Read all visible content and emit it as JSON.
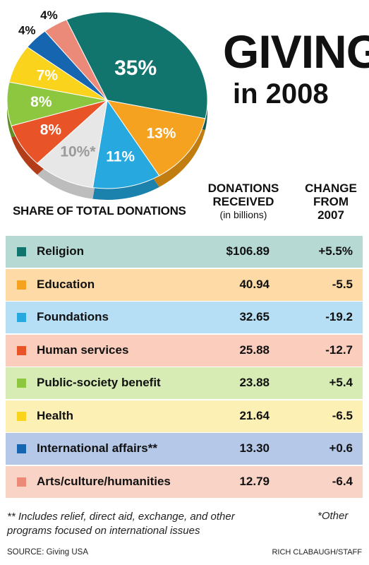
{
  "title_line1": "GIVING",
  "title_line2": "in 2008",
  "chart_data": {
    "type": "pie",
    "label": "SHARE OF TOTAL DONATIONS",
    "slices": [
      {
        "category": "Religion",
        "percent": 35,
        "label": "35%",
        "color": "#12756d",
        "shade": "#0c5952"
      },
      {
        "category": "Education",
        "percent": 13,
        "label": "13%",
        "color": "#f4a21f",
        "shade": "#c27d10"
      },
      {
        "category": "Foundations",
        "percent": 11,
        "label": "11%",
        "color": "#27a8df",
        "shade": "#1b82ad"
      },
      {
        "category": "Other",
        "percent": 10,
        "label": "10%*",
        "color": "#e7e7e7",
        "shade": "#bdbdbd"
      },
      {
        "category": "Human services",
        "percent": 8,
        "label": "8%",
        "color": "#e85427",
        "shade": "#b33d18"
      },
      {
        "category": "Public-society benefit",
        "percent": 8,
        "label": "8%",
        "color": "#8dc63f",
        "shade": "#5f8f22"
      },
      {
        "category": "Health",
        "percent": 7,
        "label": "7%",
        "color": "#f9d31c",
        "shade": "#c9a60d"
      },
      {
        "category": "International affairs",
        "percent": 4,
        "label": "4%",
        "color": "#1565b0",
        "shade": "#0e467d"
      },
      {
        "category": "Arts/culture/humanities",
        "percent": 4,
        "label": "4%",
        "color": "#ec8a7a",
        "shade": "#b7604f"
      }
    ]
  },
  "table": {
    "col_donations": {
      "line1": "DONATIONS",
      "line2": "RECEIVED",
      "sub": "(in billions)"
    },
    "col_change": {
      "line1": "CHANGE",
      "line2": "FROM",
      "line3": "2007"
    },
    "rows": [
      {
        "category": "Religion",
        "donations": "$106.89",
        "change": "+5.5%",
        "swatch": "#12756d",
        "bg": "#b6d9d3"
      },
      {
        "category": "Education",
        "donations": "40.94",
        "change": "-5.5",
        "swatch": "#f4a21f",
        "bg": "#fddaa6"
      },
      {
        "category": "Foundations",
        "donations": "32.65",
        "change": "-19.2",
        "swatch": "#27a8df",
        "bg": "#b6def4"
      },
      {
        "category": "Human services",
        "donations": "25.88",
        "change": "-12.7",
        "swatch": "#e85427",
        "bg": "#fbcdbd"
      },
      {
        "category": "Public-society benefit",
        "donations": "23.88",
        "change": "+5.4",
        "swatch": "#8dc63f",
        "bg": "#d6ecb4"
      },
      {
        "category": "Health",
        "donations": "21.64",
        "change": "-6.5",
        "swatch": "#f9d31c",
        "bg": "#fdf0b4"
      },
      {
        "category": "International affairs**",
        "donations": "13.30",
        "change": "+0.6",
        "swatch": "#1565b0",
        "bg": "#b5c8e8"
      },
      {
        "category": "Arts/culture/humanities",
        "donations": "12.79",
        "change": "-6.4",
        "swatch": "#ec8a7a",
        "bg": "#f9d3c6"
      }
    ]
  },
  "footnote": "** Includes relief, direct aid, exchange, and other programs focused on international issues",
  "other_note": "*Other",
  "source": "SOURCE: Giving USA",
  "credit": "RICH CLABAUGH/STAFF"
}
